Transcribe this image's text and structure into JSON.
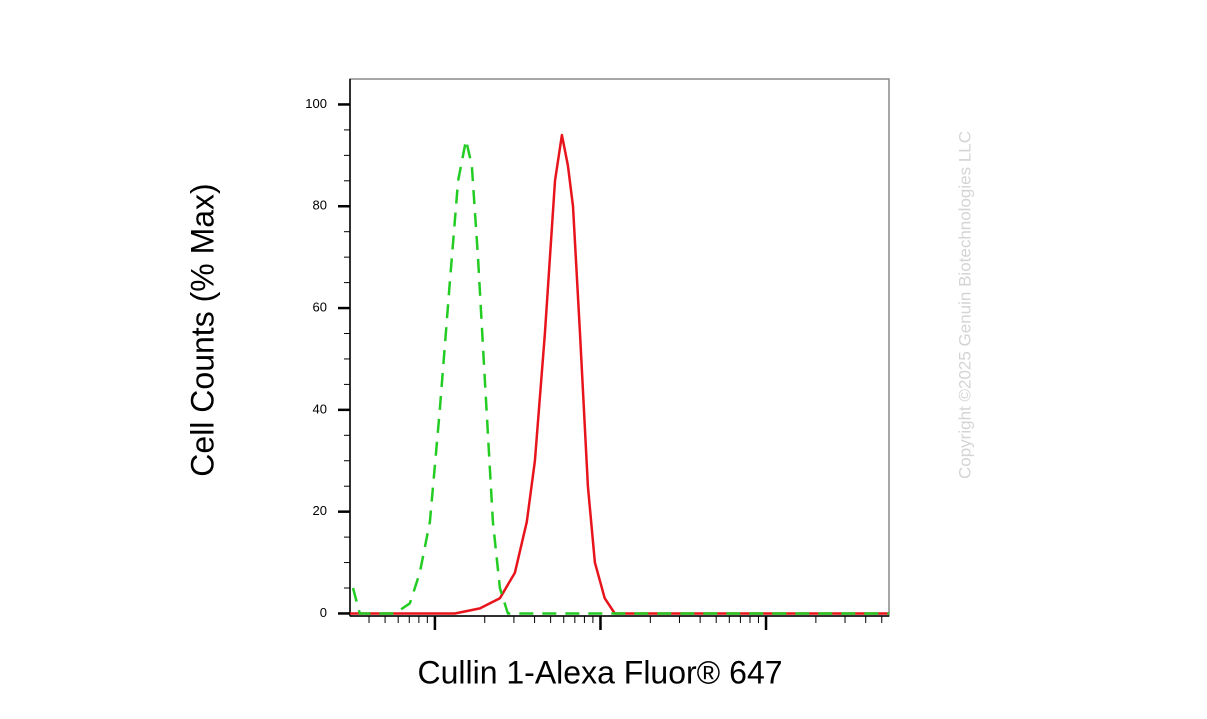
{
  "chart_data": {
    "type": "line",
    "x_label": "Cullin 1-Alexa Fluor® 647",
    "y_label": "Cell Counts (% Max)",
    "watermark": "Copyright ©2025 Genuin Biotechnologies LLC",
    "x_log": true,
    "xlim": [
      307,
      553000
    ],
    "xticks": [
      1000,
      10000,
      100000
    ],
    "xminorticks": [
      400,
      500,
      600,
      700,
      800,
      900,
      2000,
      3000,
      4000,
      5000,
      6000,
      7000,
      8000,
      9000,
      20000,
      30000,
      40000,
      50000,
      60000,
      70000,
      80000,
      90000,
      200000,
      300000,
      400000,
      500000
    ],
    "ylim": [
      -0.5,
      105
    ],
    "yticks": [
      0,
      20,
      40,
      60,
      80,
      100
    ],
    "yminorticks": [
      5,
      10,
      15,
      25,
      30,
      35,
      45,
      50,
      55,
      65,
      70,
      75,
      85,
      90,
      95
    ],
    "series": [
      {
        "color": "#e8141c",
        "dash": false,
        "x": [
          307,
          1320,
          1870,
          2470,
          3040,
          3590,
          4020,
          4620,
          5310,
          5850,
          6360,
          6820,
          7520,
          8400,
          9260,
          10600,
          12200,
          553000
        ],
        "values": [
          0,
          0,
          1,
          3,
          8,
          18,
          30,
          55,
          85,
          94,
          88,
          80,
          55,
          25,
          10,
          3,
          0,
          0
        ]
      },
      {
        "color": "#22cc22",
        "dash": true,
        "x": [
          320,
          352,
          573,
          706,
          811,
          933,
          1070,
          1230,
          1380,
          1540,
          1670,
          1820,
          2010,
          2240,
          2470,
          2760,
          553000
        ],
        "values": [
          5,
          0,
          0,
          2,
          8,
          18,
          40,
          65,
          85,
          93,
          88,
          70,
          45,
          18,
          5,
          0,
          0
        ]
      }
    ]
  }
}
